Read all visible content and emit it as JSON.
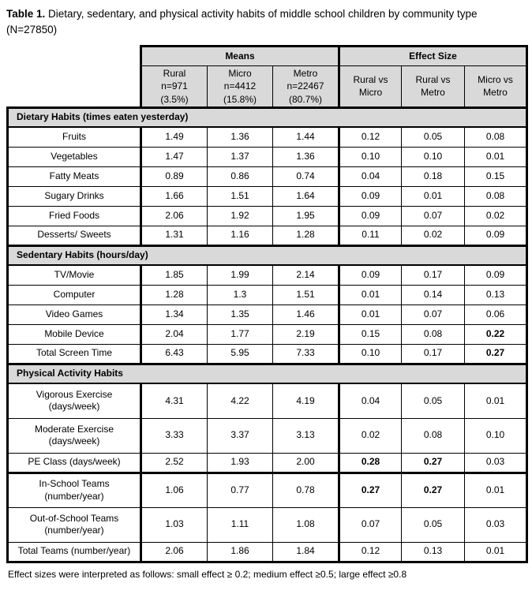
{
  "colors": {
    "header_fill": "#d9d9d9",
    "border": "#000000",
    "text": "#000000",
    "background": "#ffffff"
  },
  "title": {
    "label": "Table 1.",
    "text": " Dietary, sedentary, and physical activity habits of middle school children by community type (N=27850)"
  },
  "table": {
    "group_headers": [
      {
        "label": "Means"
      },
      {
        "label": "Effect Size"
      }
    ],
    "column_headers": [
      "Rural\nn=971\n(3.5%)",
      "Micro\nn=4412\n(15.8%)",
      "Metro\nn=22467\n(80.7%)",
      "Rural vs\nMicro",
      "Rural vs\nMetro",
      "Micro vs\nMetro"
    ],
    "sections": [
      {
        "header": "Dietary Habits (times eaten yesterday)",
        "rows": [
          {
            "label": "Fruits",
            "values": [
              "1.49",
              "1.36",
              "1.44",
              "0.12",
              "0.05",
              "0.08"
            ],
            "bold": []
          },
          {
            "label": "Vegetables",
            "values": [
              "1.47",
              "1.37",
              "1.36",
              "0.10",
              "0.10",
              "0.01"
            ],
            "bold": []
          },
          {
            "label": "Fatty Meats",
            "values": [
              "0.89",
              "0.86",
              "0.74",
              "0.04",
              "0.18",
              "0.15"
            ],
            "bold": []
          },
          {
            "label": "Sugary Drinks",
            "values": [
              "1.66",
              "1.51",
              "1.64",
              "0.09",
              "0.01",
              "0.08"
            ],
            "bold": []
          },
          {
            "label": "Fried Foods",
            "values": [
              "2.06",
              "1.92",
              "1.95",
              "0.09",
              "0.07",
              "0.02"
            ],
            "bold": []
          },
          {
            "label": "Desserts/ Sweets",
            "values": [
              "1.31",
              "1.16",
              "1.28",
              "0.11",
              "0.02",
              "0.09"
            ],
            "bold": []
          }
        ]
      },
      {
        "header": "Sedentary Habits (hours/day)",
        "rows": [
          {
            "label": "TV/Movie",
            "values": [
              "1.85",
              "1.99",
              "2.14",
              "0.09",
              "0.17",
              "0.09"
            ],
            "bold": []
          },
          {
            "label": "Computer",
            "values": [
              "1.28",
              "1.3",
              "1.51",
              "0.01",
              "0.14",
              "0.13"
            ],
            "bold": []
          },
          {
            "label": "Video Games",
            "values": [
              "1.34",
              "1.35",
              "1.46",
              "0.01",
              "0.07",
              "0.06"
            ],
            "bold": []
          },
          {
            "label": "Mobile Device",
            "values": [
              "2.04",
              "1.77",
              "2.19",
              "0.15",
              "0.08",
              "0.22"
            ],
            "bold": [
              5
            ]
          },
          {
            "label": "Total Screen Time",
            "values": [
              "6.43",
              "5.95",
              "7.33",
              "0.10",
              "0.17",
              "0.27"
            ],
            "bold": [
              5
            ]
          }
        ]
      },
      {
        "header": "Physical Activity Habits",
        "rows": [
          {
            "label": "Vigorous Exercise\n(days/week)",
            "values": [
              "4.31",
              "4.22",
              "4.19",
              "0.04",
              "0.05",
              "0.01"
            ],
            "bold": []
          },
          {
            "label": "Moderate Exercise\n(days/week)",
            "values": [
              "3.33",
              "3.37",
              "3.13",
              "0.02",
              "0.08",
              "0.10"
            ],
            "bold": []
          },
          {
            "label": "PE Class (days/week)",
            "values": [
              "2.52",
              "1.93",
              "2.00",
              "0.28",
              "0.27",
              "0.03"
            ],
            "bold": [
              3,
              4
            ]
          },
          {
            "label": "In-School Teams\n(number/year)",
            "values": [
              "1.06",
              "0.77",
              "0.78",
              "0.27",
              "0.27",
              "0.01"
            ],
            "bold": [
              3,
              4
            ],
            "thick_top": true
          },
          {
            "label": "Out-of-School Teams\n(number/year)",
            "values": [
              "1.03",
              "1.11",
              "1.08",
              "0.07",
              "0.05",
              "0.03"
            ],
            "bold": []
          },
          {
            "label": "Total Teams (number/year)",
            "values": [
              "2.06",
              "1.86",
              "1.84",
              "0.12",
              "0.13",
              "0.01"
            ],
            "bold": []
          }
        ]
      }
    ],
    "footnote": "Effect sizes were interpreted as follows: small effect ≥ 0.2; medium effect ≥0.5; large effect ≥0.8"
  }
}
